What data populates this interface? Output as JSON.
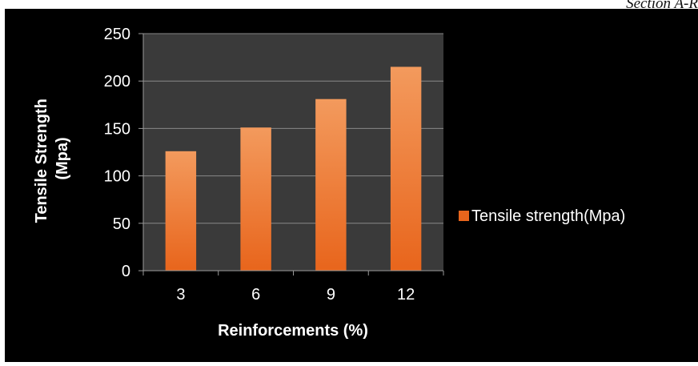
{
  "page": {
    "header_fragment": "Section A-R"
  },
  "chart_data": {
    "type": "bar",
    "categories": [
      "3",
      "6",
      "9",
      "12"
    ],
    "series": [
      {
        "name": "Tensile strength(Mpa)",
        "values": [
          126,
          151,
          181,
          215
        ]
      }
    ],
    "title": "",
    "xlabel": "Reinforcements (%)",
    "ylabel_lines": [
      "Tensile Strength",
      "(Mpa)"
    ],
    "ylim": [
      0,
      250
    ],
    "yticks": [
      0,
      50,
      100,
      150,
      200,
      250
    ],
    "grid": true,
    "legend_position": "right",
    "colors": {
      "background": "#000000",
      "plot_area": "#3a3a3a",
      "gridline": "#878787",
      "axis": "#9a9a9a",
      "bar_top": "#f39a5d",
      "bar_bottom": "#e8651c",
      "text": "#ffffff"
    }
  }
}
